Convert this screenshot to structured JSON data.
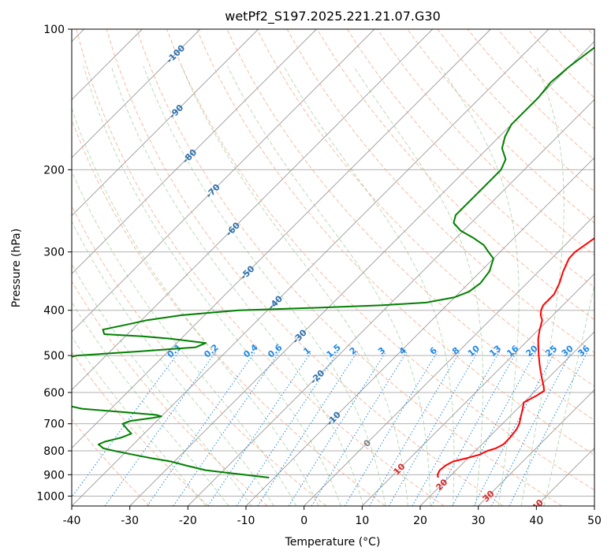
{
  "chart_data": {
    "type": "line",
    "title": "wetPf2_S197.2025.221.21.07.G30",
    "xlabel": "Temperature (°C)",
    "ylabel": "Pressure (hPa)",
    "xlim": [
      -40,
      50
    ],
    "ylim": [
      1050,
      100
    ],
    "y_scale": "log",
    "grid": true,
    "x_ticks": [
      -40,
      -30,
      -20,
      -10,
      0,
      10,
      20,
      30,
      40,
      50
    ],
    "y_ticks": [
      100,
      200,
      300,
      400,
      500,
      600,
      700,
      800,
      900,
      1000
    ],
    "colors": {
      "temperature": "#ff0000",
      "dewpoint": "#008000",
      "dry_adiabat": "#f4a582",
      "moist_adiabat": "#7fbf7b",
      "mixing_ratio": "#1e88e5",
      "isotherm": "#999999",
      "isotherm_labels": "#2c6fad",
      "warm_labels": "#d62728",
      "zero_label": "#7f7f7f"
    },
    "series": [
      {
        "key": "temperature",
        "p": [
          913,
          900,
          880,
          860,
          843,
          830,
          815,
          800,
          790,
          775,
          750,
          720,
          700,
          675,
          650,
          630,
          610,
          595,
          580,
          560,
          540,
          520,
          500,
          480,
          460,
          440,
          420,
          410,
          400,
          390,
          380,
          370,
          350,
          330,
          310,
          300,
          290,
          280,
          270,
          260,
          250,
          240,
          230,
          220,
          210,
          200,
          190,
          180,
          170,
          165,
          160,
          155,
          150,
          140,
          135,
          130,
          125,
          120,
          115,
          110,
          105,
          100
        ],
        "t": [
          18.2,
          17.6,
          17.2,
          17.4,
          18.0,
          19.7,
          21.4,
          22.1,
          23.1,
          23.7,
          23.7,
          23.4,
          22.9,
          21.9,
          20.9,
          20.0,
          21.0,
          21.5,
          20.5,
          19.0,
          17.5,
          16.0,
          14.5,
          13.0,
          11.5,
          10.2,
          9.0,
          7.9,
          7.1,
          6.6,
          6.6,
          6.6,
          5.6,
          4.2,
          3.0,
          2.9,
          3.4,
          3.9,
          4.4,
          4.2,
          3.7,
          3.0,
          2.0,
          0.5,
          -0.8,
          -1.5,
          -1.8,
          -1.8,
          -1.5,
          -1.8,
          -1.8,
          -0.5,
          0.5,
          -0.5,
          -1.0,
          -2.0,
          -2.5,
          -2.0,
          -0.5,
          1.0,
          2.5,
          3.5
        ]
      },
      {
        "key": "dewpoint",
        "p": [
          913,
          900,
          880,
          860,
          843,
          830,
          815,
          800,
          790,
          775,
          765,
          750,
          735,
          720,
          700,
          690,
          680,
          675,
          670,
          660,
          650,
          640,
          620,
          600,
          590,
          520,
          500,
          490,
          480,
          470,
          460,
          455,
          450,
          440,
          430,
          420,
          410,
          400,
          395,
          390,
          385,
          375,
          365,
          350,
          330,
          310,
          300,
          290,
          280,
          270,
          260,
          250,
          240,
          230,
          220,
          210,
          200,
          190,
          180,
          170,
          160,
          150,
          140,
          130,
          120,
          110,
          100
        ],
        "t": [
          -10.9,
          -15.8,
          -23.1,
          -27.3,
          -30.6,
          -34.4,
          -38.3,
          -42.2,
          -44.5,
          -46.0,
          -45.4,
          -43.3,
          -42.2,
          -43.6,
          -45.4,
          -44.5,
          -41.2,
          -40.0,
          -41.2,
          -48.0,
          -55.0,
          -58.0,
          -62.0,
          -65.0,
          -67.0,
          -70.0,
          -65.0,
          -55.0,
          -46.0,
          -45.0,
          -52.0,
          -57.0,
          -64.0,
          -65.0,
          -62.0,
          -59.0,
          -54.0,
          -45.0,
          -32.0,
          -21.0,
          -14.0,
          -10.0,
          -8.5,
          -8.0,
          -8.5,
          -10.0,
          -12.0,
          -14.0,
          -17.0,
          -20.5,
          -23.0,
          -24.0,
          -24.0,
          -24.0,
          -24.0,
          -24.0,
          -24.0,
          -25.0,
          -27.5,
          -29.0,
          -30.0,
          -30.0,
          -30.0,
          -30.5,
          -30.0,
          -29.0,
          -28.0
        ]
      }
    ],
    "isotherm_labels": [
      "-100",
      "-90",
      "-80",
      "-70",
      "-60",
      "-50",
      "-40",
      "-30",
      "-20",
      "-10",
      "0",
      "10",
      "20",
      "30",
      "40"
    ],
    "mixing_ratio_labels": [
      "0.1",
      "0.2",
      "0.4",
      "0.6",
      "1",
      "1.5",
      "2",
      "3",
      "4",
      "6",
      "8",
      "10",
      "13",
      "16",
      "20",
      "25",
      "30",
      "36"
    ]
  }
}
